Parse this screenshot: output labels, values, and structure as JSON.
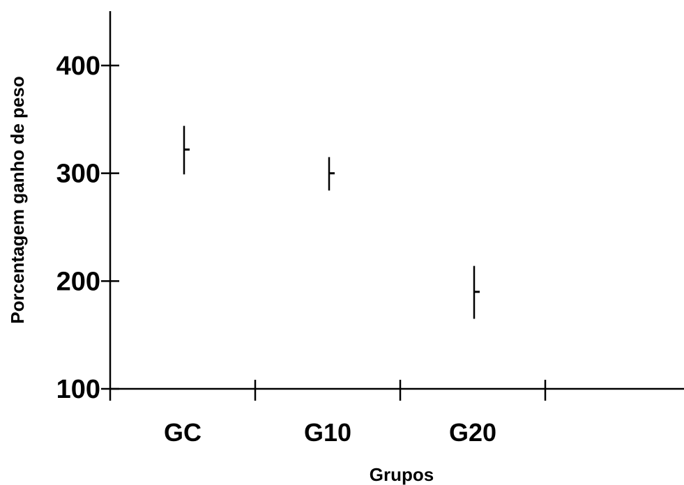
{
  "chart_data": {
    "type": "scatter",
    "subtype": "error-bar",
    "xlabel": "Grupos",
    "ylabel": "Porcentagem ganho de peso",
    "ylim": [
      100,
      450
    ],
    "yticks": [
      100,
      200,
      300,
      400
    ],
    "categories": [
      "GC",
      "G10",
      "G20"
    ],
    "series": [
      {
        "points": [
          {
            "category": "GC",
            "mean": 322,
            "upper": 344,
            "lower": 299
          },
          {
            "category": "G10",
            "mean": 300,
            "upper": 315,
            "lower": 284
          },
          {
            "category": "G20",
            "mean": 190,
            "upper": 214,
            "lower": 165
          }
        ]
      }
    ],
    "grid": false,
    "legend": "none"
  }
}
